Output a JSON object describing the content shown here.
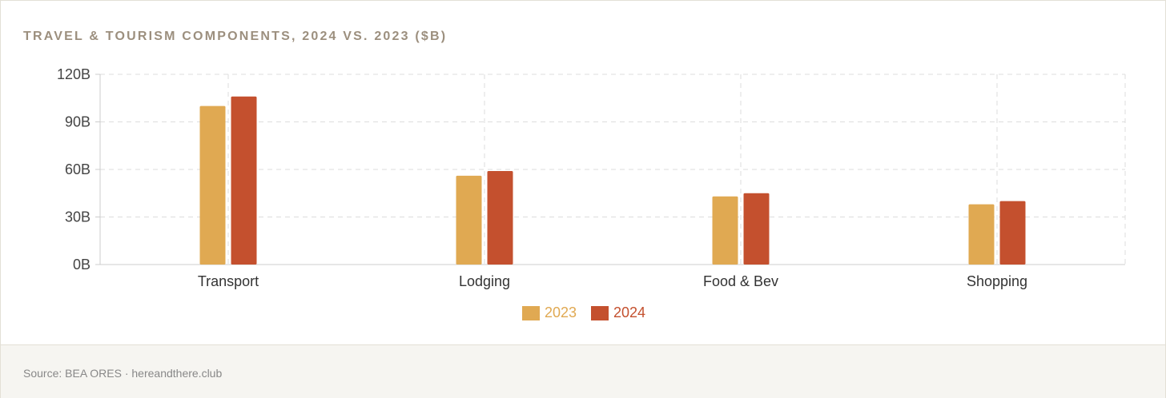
{
  "chart_data": {
    "type": "bar",
    "title": "TRAVEL & TOURISM COMPONENTS, 2024 VS. 2023 ($B)",
    "categories": [
      "Transport",
      "Lodging",
      "Food & Bev",
      "Shopping"
    ],
    "series": [
      {
        "name": "2023",
        "color": "#e0a952",
        "values": [
          100,
          56,
          43,
          38
        ]
      },
      {
        "name": "2024",
        "color": "#c4502e",
        "values": [
          106,
          59,
          45,
          40
        ]
      }
    ],
    "ylim": [
      0,
      120
    ],
    "yticks": [
      0,
      30,
      60,
      90,
      120
    ],
    "ytick_labels": [
      "0B",
      "30B",
      "60B",
      "90B",
      "120B"
    ],
    "grid": true,
    "legend_position": "bottom-center"
  },
  "footer": {
    "source": "Source: BEA ORES · hereandthere.club"
  }
}
